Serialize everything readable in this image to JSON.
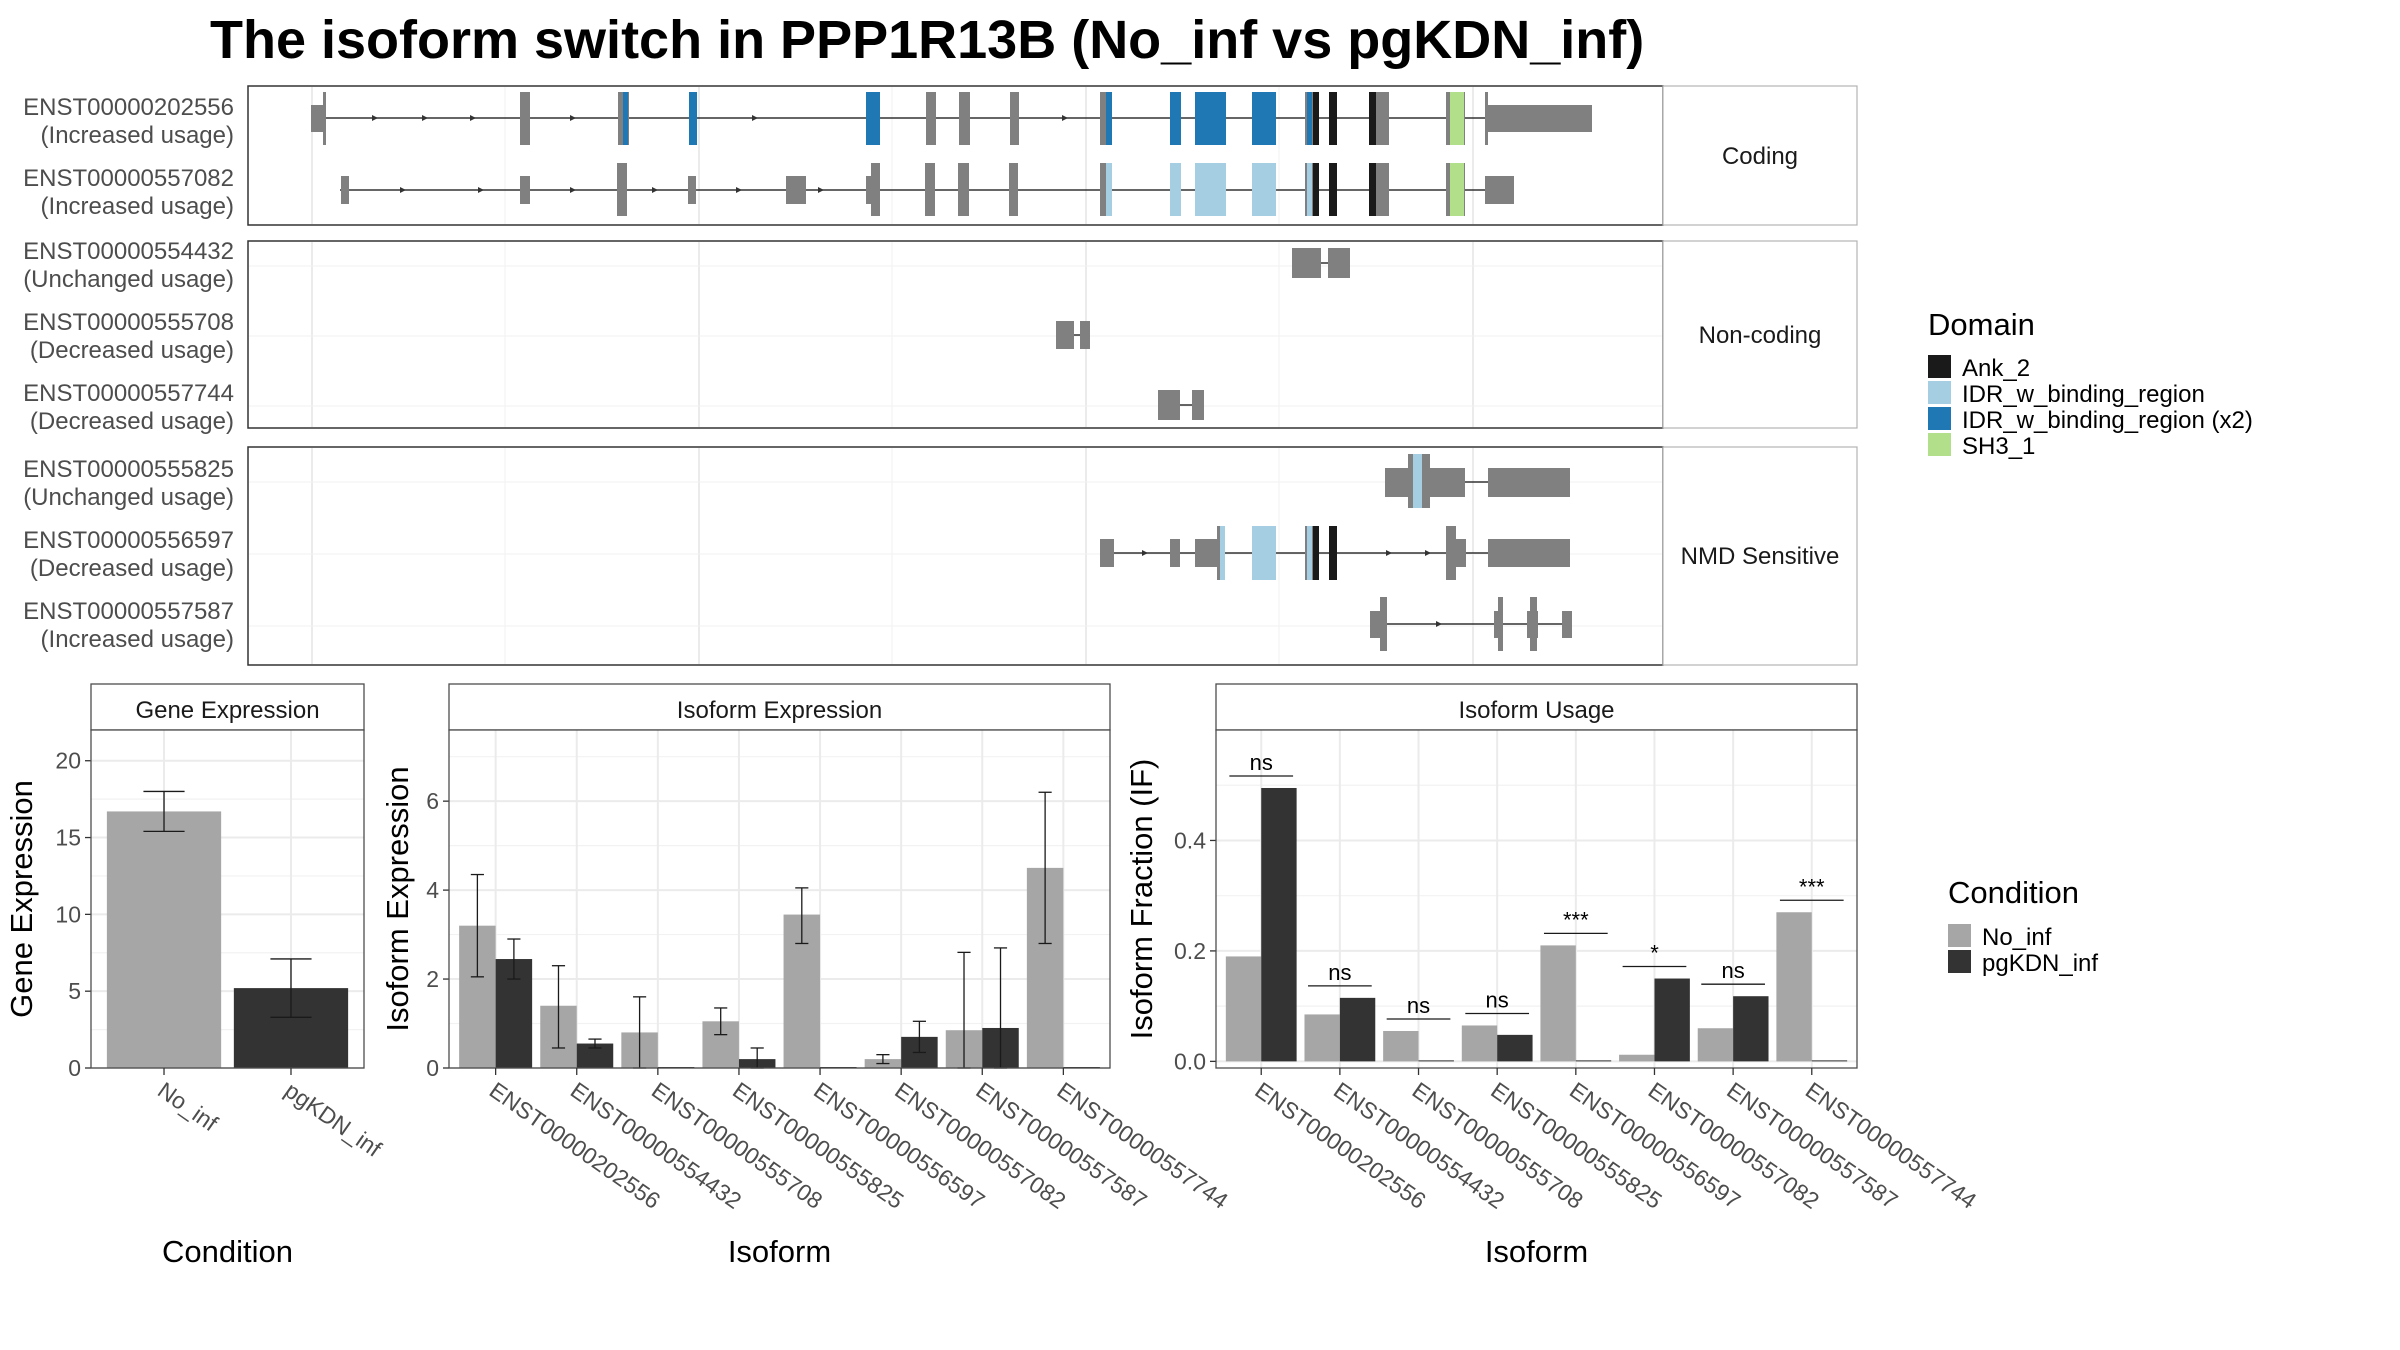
{
  "title": "The isoform switch in PPP1R13B (No_inf vs pgKDN_inf)",
  "colors": {
    "no_inf": "#a6a6a6",
    "pgkdn_inf": "#333333",
    "exon": "#808080",
    "Ank_2": "#1a1a1a",
    "IDR_w_binding_region": "#a6cee3",
    "IDR_w_binding_region (x2)": "#1f78b4",
    "SH3_1": "#b2df8a"
  },
  "isoform_panel": {
    "groups": [
      {
        "label": "Coding",
        "isoforms": [
          {
            "id": "ENST00000202556",
            "usage": "(Increased usage)"
          },
          {
            "id": "ENST00000557082",
            "usage": "(Increased usage)"
          }
        ]
      },
      {
        "label": "Non-coding",
        "isoforms": [
          {
            "id": "ENST00000554432",
            "usage": "(Unchanged usage)"
          },
          {
            "id": "ENST00000555708",
            "usage": "(Decreased usage)"
          },
          {
            "id": "ENST00000557744",
            "usage": "(Decreased usage)"
          }
        ]
      },
      {
        "label": "NMD Sensitive",
        "isoforms": [
          {
            "id": "ENST00000555825",
            "usage": "(Unchanged usage)"
          },
          {
            "id": "ENST00000556597",
            "usage": "(Decreased usage)"
          },
          {
            "id": "ENST00000557587",
            "usage": "(Increased usage)"
          }
        ]
      }
    ],
    "legend_title": "Domain",
    "domains": [
      "Ank_2",
      "IDR_w_binding_region",
      "IDR_w_binding_region (x2)",
      "SH3_1"
    ]
  },
  "condition_legend": {
    "title": "Condition",
    "items": [
      "No_inf",
      "pgKDN_inf"
    ]
  },
  "chart_data": [
    {
      "type": "bar",
      "title": "Gene Expression",
      "xlabel": "Condition",
      "ylabel": "Gene Expression",
      "categories": [
        "No_inf",
        "pgKDN_inf"
      ],
      "values": [
        16.7,
        5.2
      ],
      "errors": [
        [
          15.4,
          18.0
        ],
        [
          3.3,
          7.1
        ]
      ],
      "ylim": [
        0,
        22
      ],
      "yticks": [
        0,
        5,
        10,
        15,
        20
      ]
    },
    {
      "type": "bar",
      "title": "Isoform Expression",
      "xlabel": "Isoform",
      "ylabel": "Isoform Expression",
      "categories": [
        "ENST00000202556",
        "ENST00000554432",
        "ENST00000555708",
        "ENST00000555825",
        "ENST00000556597",
        "ENST00000557082",
        "ENST00000557587",
        "ENST00000557744"
      ],
      "series": [
        {
          "name": "No_inf",
          "values": [
            3.2,
            1.4,
            0.8,
            1.05,
            3.45,
            0.2,
            0.85,
            4.5
          ],
          "errors": [
            [
              2.05,
              4.35
            ],
            [
              0.45,
              2.3
            ],
            [
              0.0,
              1.6
            ],
            [
              0.75,
              1.35
            ],
            [
              2.8,
              4.05
            ],
            [
              0.1,
              0.3
            ],
            [
              0.0,
              2.6
            ],
            [
              2.8,
              6.2
            ]
          ]
        },
        {
          "name": "pgKDN_inf",
          "values": [
            2.45,
            0.55,
            0.0,
            0.2,
            0.0,
            0.7,
            0.9,
            0.0
          ],
          "errors": [
            [
              2.0,
              2.9
            ],
            [
              0.45,
              0.65
            ],
            null,
            [
              0.0,
              0.45
            ],
            null,
            [
              0.35,
              1.05
            ],
            [
              0.0,
              2.7
            ],
            null
          ]
        }
      ],
      "ylim": [
        0,
        7.6
      ],
      "yticks": [
        0,
        2,
        4,
        6
      ]
    },
    {
      "type": "bar",
      "title": "Isoform Usage",
      "xlabel": "Isoform",
      "ylabel": "Isoform Fraction (IF)",
      "categories": [
        "ENST00000202556",
        "ENST00000554432",
        "ENST00000555708",
        "ENST00000555825",
        "ENST00000556597",
        "ENST00000557082",
        "ENST00000557587",
        "ENST00000557744"
      ],
      "series": [
        {
          "name": "No_inf",
          "values": [
            0.19,
            0.085,
            0.055,
            0.065,
            0.21,
            0.012,
            0.06,
            0.27
          ]
        },
        {
          "name": "pgKDN_inf",
          "values": [
            0.495,
            0.115,
            0.0,
            0.048,
            0.0,
            0.15,
            0.118,
            0.0
          ]
        }
      ],
      "significance": [
        "ns",
        "ns",
        "ns",
        "ns",
        "***",
        "*",
        "ns",
        "***"
      ],
      "ylim": [
        -0.012,
        0.6
      ],
      "yticks": [
        0.0,
        0.2,
        0.4
      ]
    }
  ]
}
